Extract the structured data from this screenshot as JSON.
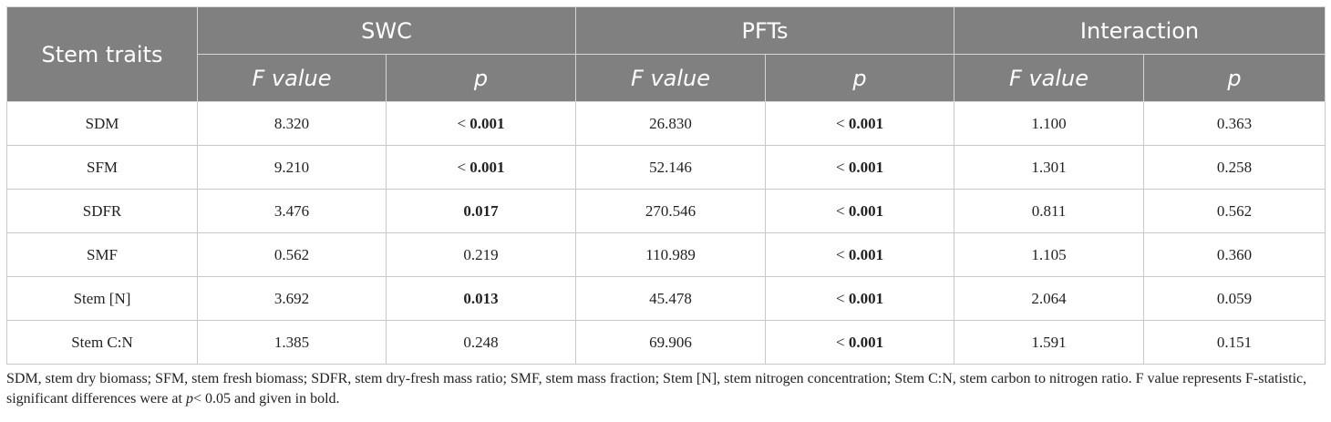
{
  "table": {
    "row_header": "Stem traits",
    "groups": [
      "SWC",
      "PFTs",
      "Interaction"
    ],
    "subheaders": [
      "F value",
      "p",
      "F value",
      "p",
      "F value",
      "p"
    ],
    "rows": [
      {
        "trait": "SDM",
        "cells": [
          {
            "text": "8.320",
            "bold": false
          },
          {
            "prefix": "< ",
            "text": "0.001",
            "bold": true
          },
          {
            "text": "26.830",
            "bold": false
          },
          {
            "prefix": "< ",
            "text": "0.001",
            "bold": true
          },
          {
            "text": "1.100",
            "bold": false
          },
          {
            "text": "0.363",
            "bold": false
          }
        ]
      },
      {
        "trait": "SFM",
        "cells": [
          {
            "text": "9.210",
            "bold": false
          },
          {
            "prefix": "< ",
            "text": "0.001",
            "bold": true
          },
          {
            "text": "52.146",
            "bold": false
          },
          {
            "prefix": "< ",
            "text": "0.001",
            "bold": true
          },
          {
            "text": "1.301",
            "bold": false
          },
          {
            "text": "0.258",
            "bold": false
          }
        ]
      },
      {
        "trait": "SDFR",
        "cells": [
          {
            "text": "3.476",
            "bold": false
          },
          {
            "text": "0.017",
            "bold": true
          },
          {
            "text": "270.546",
            "bold": false
          },
          {
            "prefix": "< ",
            "text": "0.001",
            "bold": true
          },
          {
            "text": "0.811",
            "bold": false
          },
          {
            "text": "0.562",
            "bold": false
          }
        ]
      },
      {
        "trait": "SMF",
        "cells": [
          {
            "text": "0.562",
            "bold": false
          },
          {
            "text": "0.219",
            "bold": false
          },
          {
            "text": "110.989",
            "bold": false
          },
          {
            "prefix": "< ",
            "text": "0.001",
            "bold": true
          },
          {
            "text": "1.105",
            "bold": false
          },
          {
            "text": "0.360",
            "bold": false
          }
        ]
      },
      {
        "trait": "Stem [N]",
        "cells": [
          {
            "text": "3.692",
            "bold": false
          },
          {
            "text": "0.013",
            "bold": true
          },
          {
            "text": "45.478",
            "bold": false
          },
          {
            "prefix": "< ",
            "text": "0.001",
            "bold": true
          },
          {
            "text": "2.064",
            "bold": false
          },
          {
            "text": "0.059",
            "bold": false
          }
        ]
      },
      {
        "trait": "Stem C:N",
        "cells": [
          {
            "text": "1.385",
            "bold": false
          },
          {
            "text": "0.248",
            "bold": false
          },
          {
            "text": "69.906",
            "bold": false
          },
          {
            "prefix": "< ",
            "text": "0.001",
            "bold": true
          },
          {
            "text": "1.591",
            "bold": false
          },
          {
            "text": "0.151",
            "bold": false
          }
        ]
      }
    ]
  },
  "footnote": {
    "part1": "SDM, stem dry biomass; SFM, stem fresh biomass; SDFR, stem dry-fresh mass ratio; SMF, stem mass fraction; Stem [N], stem nitrogen concentration; Stem C:N, stem carbon to nitrogen ratio. F value represents F-statistic, significant differences were at ",
    "p_symbol": "p",
    "part2": "< 0.05 and given in bold."
  },
  "colors": {
    "header_bg": "#808080",
    "header_text": "#ffffff",
    "cell_border": "#c9c9c9"
  }
}
